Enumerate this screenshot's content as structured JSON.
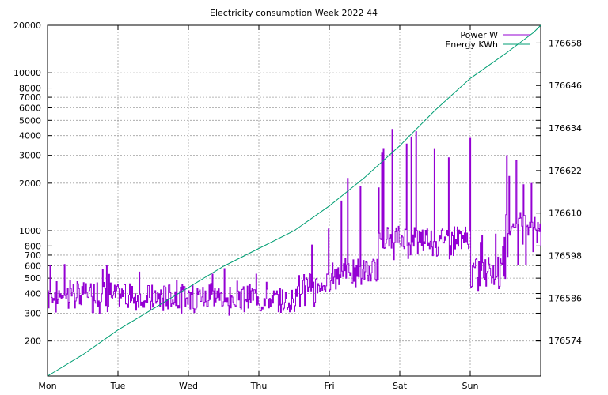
{
  "chart_data": {
    "type": "line",
    "title": "Electricity consumption Week 2022 44",
    "x_categories": [
      "Mon",
      "Tue",
      "Wed",
      "Thu",
      "Fri",
      "Sat",
      "Sun"
    ],
    "y_left": {
      "scale": "log",
      "range": [
        120,
        20000
      ],
      "ticks": [
        200,
        300,
        400,
        500,
        600,
        700,
        800,
        1000,
        2000,
        3000,
        4000,
        5000,
        6000,
        7000,
        8000,
        10000,
        20000
      ]
    },
    "y_right": {
      "scale": "linear",
      "range": [
        176564,
        176663
      ],
      "ticks": [
        176574,
        176586,
        176598,
        176610,
        176622,
        176634,
        176646,
        176658
      ]
    },
    "grid": true,
    "legend_position": "top-right",
    "series": [
      {
        "name": "Power W",
        "axis": "left",
        "color": "#9400d3",
        "style": "steps",
        "segments": [
          {
            "day_start": 0.0,
            "day_end": 0.9,
            "base": 400,
            "low": 300,
            "high": 630
          },
          {
            "day_start": 0.9,
            "day_end": 2.0,
            "base": 380,
            "low": 300,
            "high": 610
          },
          {
            "day_start": 2.0,
            "day_end": 3.0,
            "base": 380,
            "low": 290,
            "high": 580
          },
          {
            "day_start": 3.0,
            "day_end": 3.5,
            "base": 360,
            "low": 300,
            "high": 560
          },
          {
            "day_start": 3.5,
            "day_end": 4.0,
            "base": 450,
            "low": 310,
            "high": 1100
          },
          {
            "day_start": 4.0,
            "day_end": 4.7,
            "base": 560,
            "low": 420,
            "high": 2250
          },
          {
            "day_start": 4.7,
            "day_end": 5.5,
            "base": 900,
            "low": 650,
            "high": 4500
          },
          {
            "day_start": 5.5,
            "day_end": 6.0,
            "base": 900,
            "low": 650,
            "high": 4500
          },
          {
            "day_start": 6.0,
            "day_end": 6.5,
            "base": 560,
            "low": 400,
            "high": 1000
          },
          {
            "day_start": 6.5,
            "day_end": 7.0,
            "base": 1100,
            "low": 600,
            "high": 3200
          }
        ],
        "end_value": 800
      },
      {
        "name": "Energy KWh",
        "axis": "right",
        "color": "#009e73",
        "style": "line",
        "x": [
          0.0,
          0.5,
          1.0,
          1.5,
          2.0,
          2.5,
          3.0,
          3.5,
          4.0,
          4.5,
          5.0,
          5.5,
          6.0,
          6.5,
          6.9,
          7.0
        ],
        "y": [
          176564,
          176570,
          176577,
          176583,
          176589,
          176595,
          176600,
          176605,
          176612,
          176620,
          176629,
          176639,
          176648,
          176655,
          176661,
          176663
        ]
      }
    ]
  }
}
